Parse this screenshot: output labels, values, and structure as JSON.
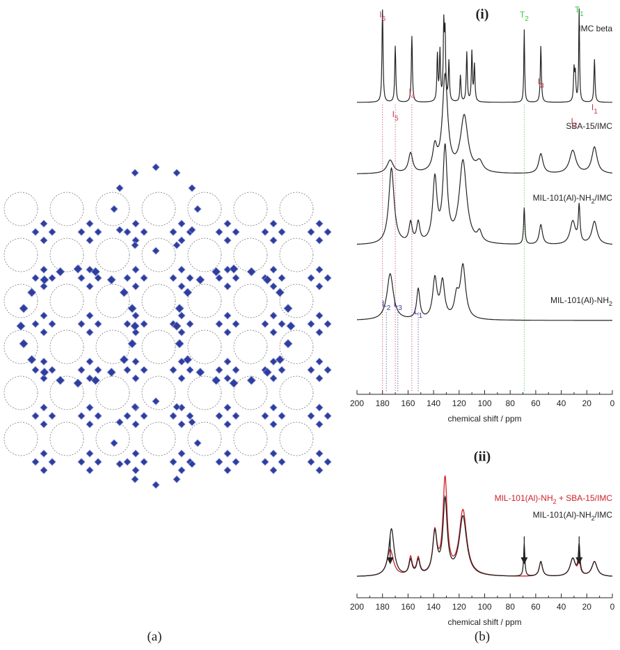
{
  "panel_a": {
    "caption": "(a)"
  },
  "panel_b": {
    "caption": "(b)",
    "plot_i": {
      "title": "(i)",
      "x_label": "chemical shift / ppm",
      "xlim": [
        200,
        0
      ],
      "xticks": [
        200,
        180,
        160,
        140,
        120,
        100,
        80,
        60,
        40,
        20,
        0
      ],
      "spectra": [
        {
          "name": [
            {
              "t": "IMC beta"
            }
          ],
          "peaks": [
            [
              180,
              140,
              0.5
            ],
            [
              170,
              85,
              0.5
            ],
            [
              157,
              100,
              0.5
            ],
            [
              137,
              70,
              0.5
            ],
            [
              135,
              75,
              0.5
            ],
            [
              132,
              110,
              0.5
            ],
            [
              131,
              95,
              0.5
            ],
            [
              128,
              60,
              0.5
            ],
            [
              119,
              40,
              0.5
            ],
            [
              114,
              75,
              0.5
            ],
            [
              110,
              75,
              0.5
            ],
            [
              108,
              55,
              0.5
            ],
            [
              69,
              110,
              0.4
            ],
            [
              56,
              85,
              0.5
            ],
            [
              30,
              48,
              0.5
            ],
            [
              29,
              40,
              0.5
            ],
            [
              26,
              140,
              0.4
            ],
            [
              14,
              65,
              0.5
            ]
          ]
        },
        {
          "name": [
            {
              "t": "SBA-15/IMC"
            }
          ],
          "peaks": [
            [
              174,
              20,
              3
            ],
            [
              158,
              30,
              2
            ],
            [
              139,
              35,
              2
            ],
            [
              131,
              145,
              2.5
            ],
            [
              116,
              85,
              3.5
            ],
            [
              104,
              15,
              3
            ],
            [
              56,
              30,
              2
            ],
            [
              31,
              35,
              3
            ],
            [
              14,
              40,
              2.5
            ]
          ]
        },
        {
          "name": [
            {
              "t": "MIL-101(Al)-NH"
            },
            {
              "t": "2",
              "sub": true
            },
            {
              "t": "/IMC"
            }
          ],
          "peaks": [
            [
              173,
              115,
              2.5
            ],
            [
              158,
              30,
              1.5
            ],
            [
              152,
              30,
              1.5
            ],
            [
              139,
              95,
              2
            ],
            [
              131,
              140,
              2
            ],
            [
              117,
              125,
              3.5
            ],
            [
              104,
              15,
              2
            ],
            [
              69,
              55,
              0.6
            ],
            [
              56,
              30,
              1.5
            ],
            [
              31,
              35,
              2.5
            ],
            [
              26,
              55,
              0.8
            ],
            [
              14,
              35,
              2.5
            ]
          ]
        },
        {
          "name": [
            {
              "t": "MIL-101(Al)-NH"
            },
            {
              "t": "2",
              "sub": true
            }
          ],
          "peaks": [
            [
              174,
              70,
              3
            ],
            [
              152,
              45,
              1.5
            ],
            [
              139,
              60,
              2
            ],
            [
              133,
              55,
              2
            ],
            [
              122,
              30,
              2
            ],
            [
              117,
              80,
              2.5
            ]
          ]
        }
      ],
      "peak_labels": [
        {
          "main": "I",
          "sub": "6",
          "ppm": 180,
          "color": "#c8324a",
          "row": 0
        },
        {
          "main": "I",
          "sub": "5",
          "ppm": 170,
          "color": "#c8324a",
          "row": 0
        },
        {
          "main": "I",
          "sub": "4",
          "ppm": 157,
          "color": "#c8324a",
          "row": 0
        },
        {
          "main": "I",
          "sub": "3",
          "ppm": 56,
          "color": "#c8324a",
          "row": 0
        },
        {
          "main": "I",
          "sub": "2",
          "ppm": 30,
          "color": "#c8324a",
          "row": 0
        },
        {
          "main": "I",
          "sub": "1",
          "ppm": 14,
          "color": "#c8324a",
          "row": 0
        },
        {
          "main": "T",
          "sub": "2",
          "ppm": 69,
          "color": "#2ecc40",
          "row": 0
        },
        {
          "main": "T",
          "sub": "1",
          "ppm": 26,
          "color": "#2ecc40",
          "row": 0
        },
        {
          "main": "L",
          "sub": "2",
          "ppm": 177,
          "color": "#3a3a9a",
          "row": 3
        },
        {
          "main": "L",
          "sub": "3",
          "ppm": 168,
          "color": "#3a3a9a",
          "row": 3
        },
        {
          "main": "L",
          "sub": "1",
          "ppm": 152,
          "color": "#3a3a9a",
          "row": 3
        }
      ]
    },
    "plot_ii": {
      "title": "(ii)",
      "x_label": "chemical shift / ppm",
      "xlim": [
        200,
        0
      ],
      "xticks": [
        200,
        180,
        160,
        140,
        120,
        100,
        80,
        60,
        40,
        20,
        0
      ],
      "spectra": [
        {
          "name": [
            {
              "t": "MIL-101(Al)-NH"
            },
            {
              "t": "2",
              "sub": true
            },
            {
              "t": " + SBA-15/IMC"
            }
          ],
          "color": "#d0202a",
          "peaks": [
            [
              174,
              45,
              3
            ],
            [
              158,
              30,
              1.5
            ],
            [
              152,
              28,
              1.5
            ],
            [
              139,
              70,
              2
            ],
            [
              131,
              160,
              2
            ],
            [
              117,
              110,
              3.5
            ],
            [
              56,
              25,
              1.5
            ],
            [
              31,
              30,
              2.5
            ],
            [
              26,
              25,
              1
            ],
            [
              14,
              25,
              2.5
            ]
          ]
        },
        {
          "name": [
            {
              "t": "MIL-101(Al)-NH"
            },
            {
              "t": "2",
              "sub": true
            },
            {
              "t": "/IMC"
            }
          ],
          "color": "#222222",
          "peaks": [
            [
              173,
              80,
              2.5
            ],
            [
              158,
              25,
              1.5
            ],
            [
              152,
              25,
              1.5
            ],
            [
              139,
              70,
              2
            ],
            [
              131,
              125,
              2
            ],
            [
              117,
              100,
              3.5
            ],
            [
              69,
              55,
              0.6
            ],
            [
              56,
              25,
              1.5
            ],
            [
              31,
              30,
              2.5
            ],
            [
              26,
              50,
              0.8
            ],
            [
              14,
              25,
              2.5
            ]
          ]
        }
      ],
      "arrows": [
        174,
        69,
        26
      ]
    }
  }
}
